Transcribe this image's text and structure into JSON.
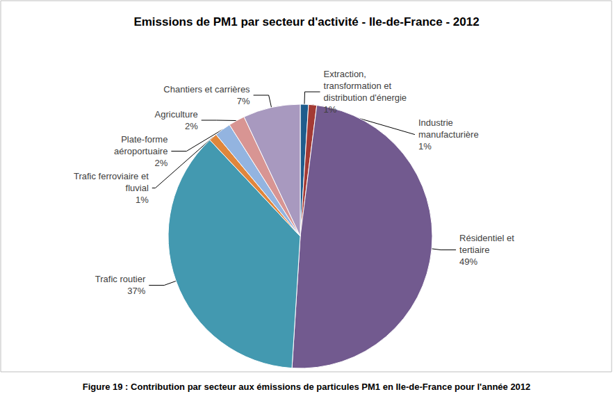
{
  "chart_data": {
    "type": "pie",
    "title": "Emissions de PM1 par secteur d'activité - Ile-de-France - 2012",
    "caption": "Figure 19 : Contribution par secteur aux émissions de particules PM1 en Ile-de-France pour l'année 2012",
    "categories": [
      "Extraction,\ntransformation et\ndistribution d'énergie",
      "Industrie\nmanufacturière",
      "Résidentiel et\ntertiaire",
      "Trafic routier",
      "Trafic ferroviaire et\nfluvial",
      "Plate-forme\naéroportuaire",
      "Agriculture",
      "Chantiers et carrières"
    ],
    "values": [
      1,
      1,
      49,
      37,
      1,
      2,
      2,
      7
    ],
    "value_labels": [
      "1%",
      "1%",
      "49%",
      "37%",
      "1%",
      "2%",
      "2%",
      "7%"
    ],
    "colors": [
      "#1f5c8c",
      "#a33a34",
      "#725a8f",
      "#4399b0",
      "#e0863b",
      "#93b4e0",
      "#d89593",
      "#a899bf"
    ],
    "data_labels": true
  }
}
